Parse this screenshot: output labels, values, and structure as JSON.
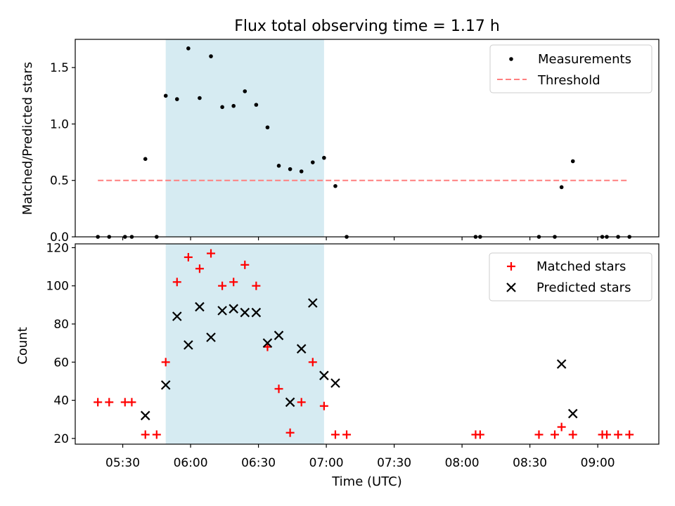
{
  "title": "Flux total observing time = 1.17 h",
  "chart_data": [
    {
      "type": "scatter",
      "ylabel": "Matched/Predicted stars",
      "ylim": [
        0,
        1.75
      ],
      "yticks": [
        0.0,
        0.5,
        1.0,
        1.5
      ],
      "ytick_labels": [
        "0.0",
        "0.5",
        "1.0",
        "1.5"
      ],
      "shaded_span": {
        "x": [
          "05:49",
          "06:59"
        ],
        "color": "#add8e6"
      },
      "legend": {
        "position": "top-right",
        "entries": [
          "Measurements",
          "Threshold"
        ]
      },
      "series": [
        {
          "name": "Measurements",
          "marker": "dot",
          "color": "#000000",
          "points": [
            [
              "05:19",
              0.0
            ],
            [
              "05:24",
              0.0
            ],
            [
              "05:31",
              0.0
            ],
            [
              "05:34",
              0.0
            ],
            [
              "05:40",
              0.69
            ],
            [
              "05:45",
              0.0
            ],
            [
              "05:49",
              1.25
            ],
            [
              "05:54",
              1.22
            ],
            [
              "05:59",
              1.67
            ],
            [
              "06:04",
              1.23
            ],
            [
              "06:09",
              1.6
            ],
            [
              "06:14",
              1.15
            ],
            [
              "06:19",
              1.16
            ],
            [
              "06:24",
              1.29
            ],
            [
              "06:29",
              1.17
            ],
            [
              "06:34",
              0.97
            ],
            [
              "06:39",
              0.63
            ],
            [
              "06:44",
              0.6
            ],
            [
              "06:49",
              0.58
            ],
            [
              "06:54",
              0.66
            ],
            [
              "06:59",
              0.7
            ],
            [
              "07:04",
              0.45
            ],
            [
              "07:09",
              0.0
            ],
            [
              "08:06",
              0.0
            ],
            [
              "08:08",
              0.0
            ],
            [
              "08:34",
              0.0
            ],
            [
              "08:41",
              0.0
            ],
            [
              "08:44",
              0.44
            ],
            [
              "08:49",
              0.67
            ],
            [
              "09:02",
              0.0
            ],
            [
              "09:04",
              0.0
            ],
            [
              "09:09",
              0.0
            ],
            [
              "09:14",
              0.0
            ]
          ]
        },
        {
          "name": "Threshold",
          "style": "dashed",
          "color": "#ff7f7f",
          "points": [
            [
              "05:19",
              0.5
            ],
            [
              "09:14",
              0.5
            ]
          ]
        }
      ]
    },
    {
      "type": "scatter",
      "xlabel": "Time (UTC)",
      "ylabel": "Count",
      "ylim": [
        17,
        122
      ],
      "yticks": [
        20,
        40,
        60,
        80,
        100,
        120
      ],
      "ytick_labels": [
        "20",
        "40",
        "60",
        "80",
        "100",
        "120"
      ],
      "xlim": [
        "05:09",
        "09:27"
      ],
      "xticks": [
        "05:30",
        "06:00",
        "06:30",
        "07:00",
        "07:30",
        "08:00",
        "08:30",
        "09:00"
      ],
      "xtick_labels": [
        "05:30",
        "06:00",
        "06:30",
        "07:00",
        "07:30",
        "08:00",
        "08:30",
        "09:00"
      ],
      "shaded_span": {
        "x": [
          "05:49",
          "06:59"
        ],
        "color": "#add8e6"
      },
      "legend": {
        "position": "top-right",
        "entries": [
          "Matched stars",
          "Predicted stars"
        ]
      },
      "series": [
        {
          "name": "Matched stars",
          "marker": "plus",
          "color": "#ff0000",
          "points": [
            [
              "05:19",
              39
            ],
            [
              "05:24",
              39
            ],
            [
              "05:31",
              39
            ],
            [
              "05:34",
              39
            ],
            [
              "05:40",
              22
            ],
            [
              "05:45",
              22
            ],
            [
              "05:49",
              60
            ],
            [
              "05:54",
              102
            ],
            [
              "05:59",
              115
            ],
            [
              "06:04",
              109
            ],
            [
              "06:09",
              117
            ],
            [
              "06:14",
              100
            ],
            [
              "06:19",
              102
            ],
            [
              "06:24",
              111
            ],
            [
              "06:29",
              100
            ],
            [
              "06:34",
              68
            ],
            [
              "06:39",
              46
            ],
            [
              "06:44",
              23
            ],
            [
              "06:49",
              39
            ],
            [
              "06:54",
              60
            ],
            [
              "06:59",
              37
            ],
            [
              "07:04",
              22
            ],
            [
              "07:09",
              22
            ],
            [
              "08:06",
              22
            ],
            [
              "08:08",
              22
            ],
            [
              "08:34",
              22
            ],
            [
              "08:41",
              22
            ],
            [
              "08:44",
              26
            ],
            [
              "08:49",
              22
            ],
            [
              "09:02",
              22
            ],
            [
              "09:04",
              22
            ],
            [
              "09:09",
              22
            ],
            [
              "09:14",
              22
            ]
          ]
        },
        {
          "name": "Predicted stars",
          "marker": "x",
          "color": "#000000",
          "points": [
            [
              "05:40",
              32
            ],
            [
              "05:49",
              48
            ],
            [
              "05:54",
              84
            ],
            [
              "05:59",
              69
            ],
            [
              "06:04",
              89
            ],
            [
              "06:09",
              73
            ],
            [
              "06:14",
              87
            ],
            [
              "06:19",
              88
            ],
            [
              "06:24",
              86
            ],
            [
              "06:29",
              86
            ],
            [
              "06:34",
              70
            ],
            [
              "06:39",
              74
            ],
            [
              "06:44",
              39
            ],
            [
              "06:49",
              67
            ],
            [
              "06:54",
              91
            ],
            [
              "06:59",
              53
            ],
            [
              "07:04",
              49
            ],
            [
              "08:44",
              59
            ],
            [
              "08:49",
              33
            ]
          ]
        }
      ]
    }
  ]
}
